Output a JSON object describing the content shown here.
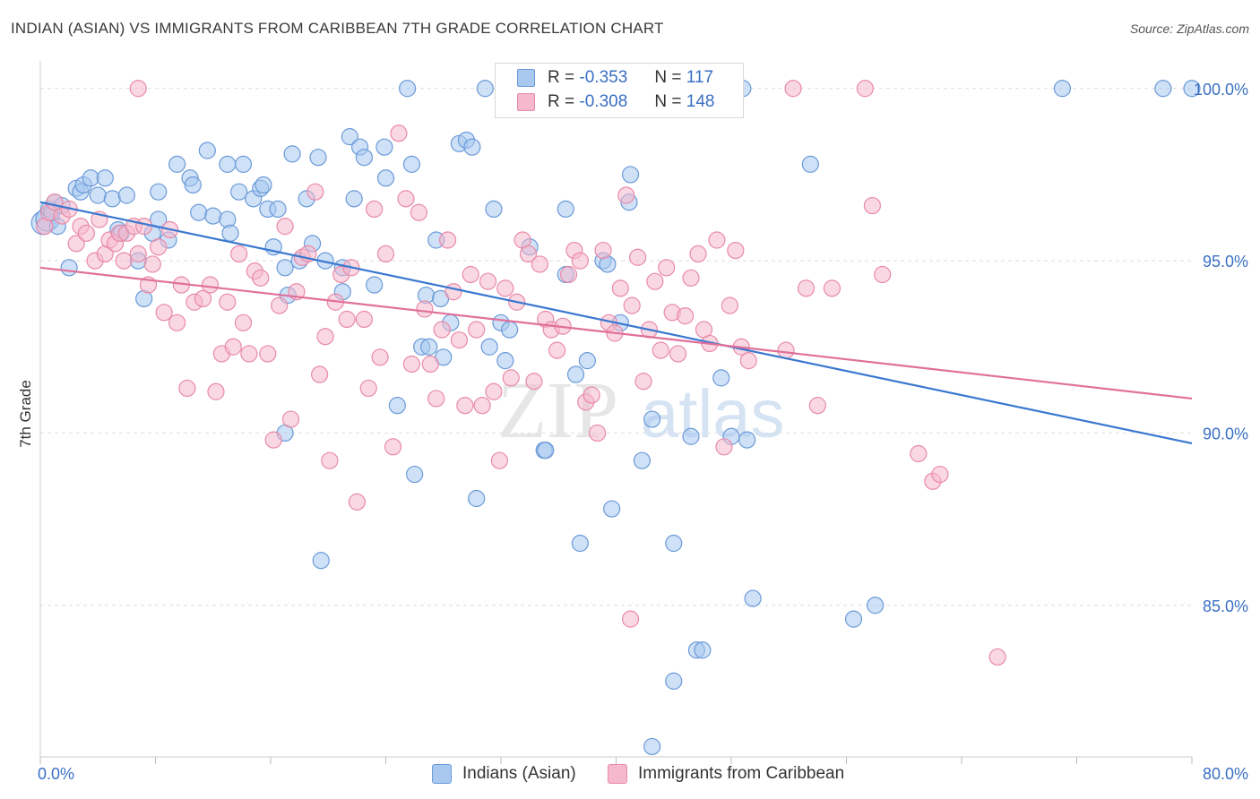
{
  "title": "INDIAN (ASIAN) VS IMMIGRANTS FROM CARIBBEAN 7TH GRADE CORRELATION CHART",
  "source": "Source: ZipAtlas.com",
  "watermark": {
    "zip": "ZIP",
    "atlas": "atlas"
  },
  "colors": {
    "blue_fill": "#a8c8f0",
    "blue_stroke": "#6a9ad8",
    "blue_line": "#3a78d0",
    "pink_fill": "#f5b8cc",
    "pink_stroke": "#e88aa8",
    "pink_line": "#e0709a",
    "grid": "#dddddd",
    "axis_label": "#3a6fc4"
  },
  "legend": {
    "r_label": "R =",
    "n_label": "N =",
    "blue": {
      "r": "-0.353",
      "n": "117"
    },
    "pink": {
      "r": "-0.308",
      "n": "148"
    }
  },
  "bottom_legend": {
    "blue": "Indians (Asian)",
    "pink": "Immigrants from Caribbean"
  },
  "chart_data": {
    "type": "scatter",
    "ylabel": "7th Grade",
    "xlim": [
      0,
      80
    ],
    "ylim": [
      80.6,
      100.8
    ],
    "x_tick_labels": [
      "0.0%",
      "80.0%"
    ],
    "y_ticks": [
      85,
      90,
      95,
      100
    ],
    "y_tick_labels": [
      "85.0%",
      "90.0%",
      "95.0%",
      "100.0%"
    ],
    "grid": true,
    "legend_position": "top-center",
    "series": [
      {
        "name": "Indians (Asian)",
        "color": "#a8c8f0",
        "trend": {
          "x": [
            0,
            80
          ],
          "y": [
            96.7,
            89.7
          ]
        },
        "points": [
          [
            0.2,
            96.1
          ],
          [
            0.5,
            96.2
          ],
          [
            0.6,
            96.5
          ],
          [
            0.8,
            96.4
          ],
          [
            1.0,
            96.7
          ],
          [
            1.2,
            96.0
          ],
          [
            1.5,
            96.6
          ],
          [
            2.0,
            94.8
          ],
          [
            2.5,
            97.1
          ],
          [
            2.8,
            97.0
          ],
          [
            3.0,
            97.2
          ],
          [
            3.5,
            97.4
          ],
          [
            4.0,
            96.9
          ],
          [
            4.5,
            97.4
          ],
          [
            5.0,
            96.8
          ],
          [
            5.4,
            95.9
          ],
          [
            5.6,
            95.8
          ],
          [
            6.0,
            96.9
          ],
          [
            6.8,
            95.0
          ],
          [
            7.2,
            93.9
          ],
          [
            7.8,
            95.8
          ],
          [
            8.2,
            96.2
          ],
          [
            8.2,
            97.0
          ],
          [
            8.9,
            95.6
          ],
          [
            9.5,
            97.8
          ],
          [
            10.4,
            97.4
          ],
          [
            10.6,
            97.2
          ],
          [
            11.0,
            96.4
          ],
          [
            11.6,
            98.2
          ],
          [
            12.0,
            96.3
          ],
          [
            13.0,
            97.8
          ],
          [
            13.0,
            96.2
          ],
          [
            13.2,
            95.8
          ],
          [
            13.8,
            97.0
          ],
          [
            14.1,
            97.8
          ],
          [
            14.8,
            96.8
          ],
          [
            15.3,
            97.1
          ],
          [
            15.5,
            97.2
          ],
          [
            15.8,
            96.5
          ],
          [
            16.2,
            95.4
          ],
          [
            16.5,
            96.5
          ],
          [
            17.0,
            94.8
          ],
          [
            17.2,
            94.0
          ],
          [
            17.5,
            98.1
          ],
          [
            18.0,
            95.0
          ],
          [
            18.5,
            96.8
          ],
          [
            18.9,
            95.5
          ],
          [
            19.3,
            98.0
          ],
          [
            19.8,
            95.0
          ],
          [
            21.0,
            94.8
          ],
          [
            21.0,
            94.1
          ],
          [
            21.5,
            98.6
          ],
          [
            21.8,
            96.8
          ],
          [
            22.2,
            98.3
          ],
          [
            22.5,
            98.0
          ],
          [
            23.2,
            94.3
          ],
          [
            23.9,
            98.3
          ],
          [
            24.0,
            97.4
          ],
          [
            24.8,
            90.8
          ],
          [
            25.5,
            100.0
          ],
          [
            25.8,
            97.8
          ],
          [
            26.0,
            88.8
          ],
          [
            26.5,
            92.5
          ],
          [
            26.8,
            94.0
          ],
          [
            27.0,
            92.5
          ],
          [
            27.5,
            95.6
          ],
          [
            27.8,
            93.9
          ],
          [
            28.0,
            92.2
          ],
          [
            28.5,
            93.2
          ],
          [
            29.1,
            98.4
          ],
          [
            29.6,
            98.5
          ],
          [
            30.0,
            98.3
          ],
          [
            30.3,
            88.1
          ],
          [
            30.9,
            100.0
          ],
          [
            31.2,
            92.5
          ],
          [
            31.5,
            96.5
          ],
          [
            32.0,
            93.2
          ],
          [
            32.3,
            92.1
          ],
          [
            32.6,
            93.0
          ],
          [
            34.0,
            95.4
          ],
          [
            35.0,
            89.5
          ],
          [
            35.1,
            89.5
          ],
          [
            36.5,
            96.5
          ],
          [
            36.5,
            94.6
          ],
          [
            37.2,
            91.7
          ],
          [
            37.5,
            86.8
          ],
          [
            38.0,
            92.1
          ],
          [
            39.1,
            95.0
          ],
          [
            39.4,
            94.9
          ],
          [
            39.7,
            87.8
          ],
          [
            40.3,
            93.2
          ],
          [
            40.9,
            96.7
          ],
          [
            41.0,
            97.5
          ],
          [
            41.8,
            89.2
          ],
          [
            42.5,
            90.4
          ],
          [
            44.0,
            86.8
          ],
          [
            45.2,
            89.9
          ],
          [
            45.6,
            83.7
          ],
          [
            46.0,
            83.7
          ],
          [
            47.3,
            91.6
          ],
          [
            48.0,
            89.9
          ],
          [
            49.1,
            89.8
          ],
          [
            49.5,
            85.2
          ],
          [
            53.5,
            97.8
          ],
          [
            56.5,
            84.6
          ],
          [
            58.0,
            85.0
          ],
          [
            71.0,
            100.0
          ],
          [
            78.0,
            100.0
          ],
          [
            80.0,
            100.0
          ],
          [
            42.5,
            80.9
          ],
          [
            44.0,
            82.8
          ],
          [
            19.5,
            86.3
          ],
          [
            17.0,
            90.0
          ],
          [
            48.8,
            100.0
          ]
        ]
      },
      {
        "name": "Immigrants from Caribbean",
        "color": "#f5b8cc",
        "trend": {
          "x": [
            0,
            80
          ],
          "y": [
            94.8,
            91.0
          ]
        },
        "points": [
          [
            0.3,
            96.0
          ],
          [
            0.6,
            96.4
          ],
          [
            1.0,
            96.7
          ],
          [
            1.5,
            96.3
          ],
          [
            2.0,
            96.5
          ],
          [
            2.5,
            95.5
          ],
          [
            2.8,
            96.0
          ],
          [
            3.2,
            95.8
          ],
          [
            3.8,
            95.0
          ],
          [
            4.1,
            96.2
          ],
          [
            4.5,
            95.2
          ],
          [
            4.8,
            95.6
          ],
          [
            5.2,
            95.5
          ],
          [
            5.5,
            95.8
          ],
          [
            5.8,
            95.0
          ],
          [
            6.0,
            95.8
          ],
          [
            6.5,
            96.0
          ],
          [
            6.8,
            95.2
          ],
          [
            7.2,
            96.0
          ],
          [
            7.5,
            94.3
          ],
          [
            7.8,
            94.9
          ],
          [
            8.2,
            95.4
          ],
          [
            8.6,
            93.5
          ],
          [
            9.0,
            95.9
          ],
          [
            9.5,
            93.2
          ],
          [
            9.8,
            94.3
          ],
          [
            10.2,
            91.3
          ],
          [
            10.7,
            93.8
          ],
          [
            11.3,
            93.9
          ],
          [
            11.8,
            94.3
          ],
          [
            12.2,
            91.2
          ],
          [
            12.6,
            92.3
          ],
          [
            13.0,
            93.8
          ],
          [
            13.4,
            92.5
          ],
          [
            13.8,
            95.2
          ],
          [
            14.1,
            93.2
          ],
          [
            14.5,
            92.3
          ],
          [
            14.9,
            94.7
          ],
          [
            15.3,
            94.5
          ],
          [
            15.8,
            92.3
          ],
          [
            16.2,
            89.8
          ],
          [
            16.6,
            93.7
          ],
          [
            17.0,
            96.0
          ],
          [
            17.4,
            90.4
          ],
          [
            17.8,
            94.1
          ],
          [
            18.2,
            95.1
          ],
          [
            18.6,
            95.2
          ],
          [
            19.1,
            97.0
          ],
          [
            19.4,
            91.7
          ],
          [
            19.8,
            92.8
          ],
          [
            20.1,
            89.2
          ],
          [
            20.5,
            93.8
          ],
          [
            20.9,
            94.6
          ],
          [
            21.3,
            93.3
          ],
          [
            21.6,
            94.8
          ],
          [
            22.0,
            88.0
          ],
          [
            22.5,
            93.3
          ],
          [
            22.8,
            91.3
          ],
          [
            23.2,
            96.5
          ],
          [
            23.6,
            92.2
          ],
          [
            24.0,
            95.2
          ],
          [
            24.5,
            89.6
          ],
          [
            24.9,
            98.7
          ],
          [
            25.4,
            96.8
          ],
          [
            25.8,
            92.0
          ],
          [
            26.3,
            96.4
          ],
          [
            26.7,
            93.6
          ],
          [
            27.1,
            92.0
          ],
          [
            27.5,
            91.0
          ],
          [
            27.9,
            93.0
          ],
          [
            28.3,
            95.6
          ],
          [
            28.7,
            94.1
          ],
          [
            29.1,
            92.7
          ],
          [
            29.5,
            90.8
          ],
          [
            29.9,
            94.6
          ],
          [
            30.3,
            93.0
          ],
          [
            30.7,
            90.8
          ],
          [
            31.1,
            94.4
          ],
          [
            31.5,
            91.2
          ],
          [
            31.9,
            89.2
          ],
          [
            32.3,
            94.2
          ],
          [
            32.7,
            91.6
          ],
          [
            33.1,
            93.8
          ],
          [
            33.5,
            95.6
          ],
          [
            33.9,
            95.2
          ],
          [
            34.3,
            91.5
          ],
          [
            34.7,
            94.9
          ],
          [
            35.1,
            93.3
          ],
          [
            35.5,
            93.0
          ],
          [
            35.9,
            92.4
          ],
          [
            36.3,
            93.1
          ],
          [
            36.7,
            94.6
          ],
          [
            37.1,
            95.3
          ],
          [
            37.5,
            95.0
          ],
          [
            37.9,
            90.9
          ],
          [
            38.3,
            91.1
          ],
          [
            38.7,
            90.0
          ],
          [
            39.1,
            95.3
          ],
          [
            39.5,
            93.2
          ],
          [
            39.9,
            92.9
          ],
          [
            40.3,
            94.2
          ],
          [
            40.7,
            96.9
          ],
          [
            41.1,
            93.7
          ],
          [
            41.5,
            95.1
          ],
          [
            41.9,
            91.5
          ],
          [
            42.3,
            93.0
          ],
          [
            42.7,
            94.4
          ],
          [
            43.1,
            92.4
          ],
          [
            43.5,
            94.8
          ],
          [
            43.9,
            93.5
          ],
          [
            44.3,
            92.3
          ],
          [
            44.8,
            93.4
          ],
          [
            45.2,
            94.5
          ],
          [
            45.7,
            95.2
          ],
          [
            46.1,
            93.0
          ],
          [
            46.5,
            92.6
          ],
          [
            47.0,
            95.6
          ],
          [
            47.5,
            89.6
          ],
          [
            47.9,
            93.7
          ],
          [
            48.3,
            95.3
          ],
          [
            48.7,
            92.5
          ],
          [
            49.2,
            92.1
          ],
          [
            51.8,
            92.4
          ],
          [
            53.2,
            94.2
          ],
          [
            54.0,
            90.8
          ],
          [
            55.0,
            94.2
          ],
          [
            58.5,
            94.6
          ],
          [
            61.0,
            89.4
          ],
          [
            62.0,
            88.6
          ],
          [
            62.5,
            88.8
          ],
          [
            66.5,
            83.5
          ],
          [
            52.3,
            100.0
          ],
          [
            57.3,
            100.0
          ],
          [
            57.8,
            96.6
          ],
          [
            6.8,
            100.0
          ],
          [
            41.0,
            84.6
          ]
        ]
      }
    ]
  }
}
